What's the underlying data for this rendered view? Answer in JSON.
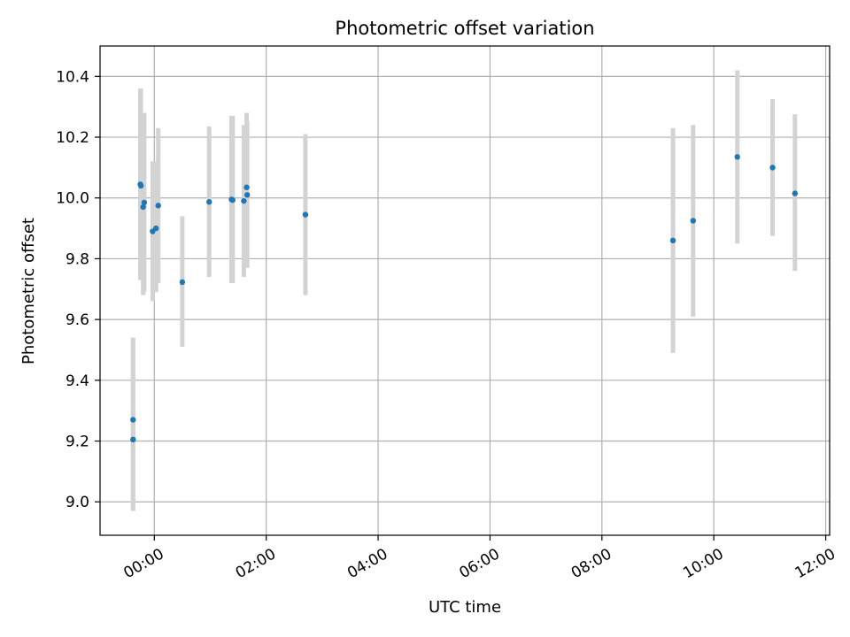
{
  "chart_data": {
    "type": "scatter",
    "title": "Photometric offset variation",
    "xlabel": "UTC time",
    "ylabel": "Photometric offset",
    "x_unit": "hours",
    "xlim": [
      -0.97,
      12.07
    ],
    "ylim": [
      8.89,
      10.5
    ],
    "xticks": [
      {
        "value": 0,
        "label": "00:00"
      },
      {
        "value": 2,
        "label": "02:00"
      },
      {
        "value": 4,
        "label": "04:00"
      },
      {
        "value": 6,
        "label": "06:00"
      },
      {
        "value": 8,
        "label": "08:00"
      },
      {
        "value": 10,
        "label": "10:00"
      },
      {
        "value": 12,
        "label": "12:00"
      }
    ],
    "yticks": [
      {
        "value": 9.0,
        "label": "9.0"
      },
      {
        "value": 9.2,
        "label": "9.2"
      },
      {
        "value": 9.4,
        "label": "9.4"
      },
      {
        "value": 9.6,
        "label": "9.6"
      },
      {
        "value": 9.8,
        "label": "9.8"
      },
      {
        "value": 10.0,
        "label": "10.0"
      },
      {
        "value": 10.2,
        "label": "10.2"
      },
      {
        "value": 10.4,
        "label": "10.4"
      }
    ],
    "grid": true,
    "legend": false,
    "colors": {
      "points": "#1f77b4",
      "errorbars": "#d3d3d3",
      "grid": "#b0b0b0"
    },
    "points": [
      {
        "x": -0.38,
        "y": 9.27,
        "yerr_low": 8.97,
        "yerr_high": 9.54
      },
      {
        "x": -0.38,
        "y": 9.205,
        "yerr_low": 8.97,
        "yerr_high": 9.54
      },
      {
        "x": -0.25,
        "y": 10.045,
        "yerr_low": 9.73,
        "yerr_high": 10.36
      },
      {
        "x": -0.24,
        "y": 10.04,
        "yerr_low": 9.73,
        "yerr_high": 10.36
      },
      {
        "x": -0.2,
        "y": 9.97,
        "yerr_low": 9.68,
        "yerr_high": 10.27
      },
      {
        "x": -0.18,
        "y": 9.985,
        "yerr_low": 9.69,
        "yerr_high": 10.28
      },
      {
        "x": -0.03,
        "y": 9.89,
        "yerr_low": 9.66,
        "yerr_high": 10.12
      },
      {
        "x": 0.03,
        "y": 9.9,
        "yerr_low": 9.69,
        "yerr_high": 10.12
      },
      {
        "x": 0.07,
        "y": 9.975,
        "yerr_low": 9.72,
        "yerr_high": 10.23
      },
      {
        "x": 0.5,
        "y": 9.723,
        "yerr_low": 9.51,
        "yerr_high": 9.94
      },
      {
        "x": 0.98,
        "y": 9.987,
        "yerr_low": 9.74,
        "yerr_high": 10.235
      },
      {
        "x": 1.38,
        "y": 9.995,
        "yerr_low": 9.72,
        "yerr_high": 10.27
      },
      {
        "x": 1.4,
        "y": 9.993,
        "yerr_low": 9.72,
        "yerr_high": 10.27
      },
      {
        "x": 1.6,
        "y": 9.99,
        "yerr_low": 9.74,
        "yerr_high": 10.24
      },
      {
        "x": 1.65,
        "y": 10.035,
        "yerr_low": 9.78,
        "yerr_high": 10.28
      },
      {
        "x": 1.66,
        "y": 10.01,
        "yerr_low": 9.77,
        "yerr_high": 10.25
      },
      {
        "x": 2.7,
        "y": 9.945,
        "yerr_low": 9.68,
        "yerr_high": 10.21
      },
      {
        "x": 9.27,
        "y": 9.86,
        "yerr_low": 9.49,
        "yerr_high": 10.23
      },
      {
        "x": 9.63,
        "y": 9.925,
        "yerr_low": 9.61,
        "yerr_high": 10.24
      },
      {
        "x": 10.42,
        "y": 10.135,
        "yerr_low": 9.85,
        "yerr_high": 10.42
      },
      {
        "x": 11.05,
        "y": 10.1,
        "yerr_low": 9.875,
        "yerr_high": 10.325
      },
      {
        "x": 11.45,
        "y": 10.015,
        "yerr_low": 9.76,
        "yerr_high": 10.275
      }
    ]
  }
}
